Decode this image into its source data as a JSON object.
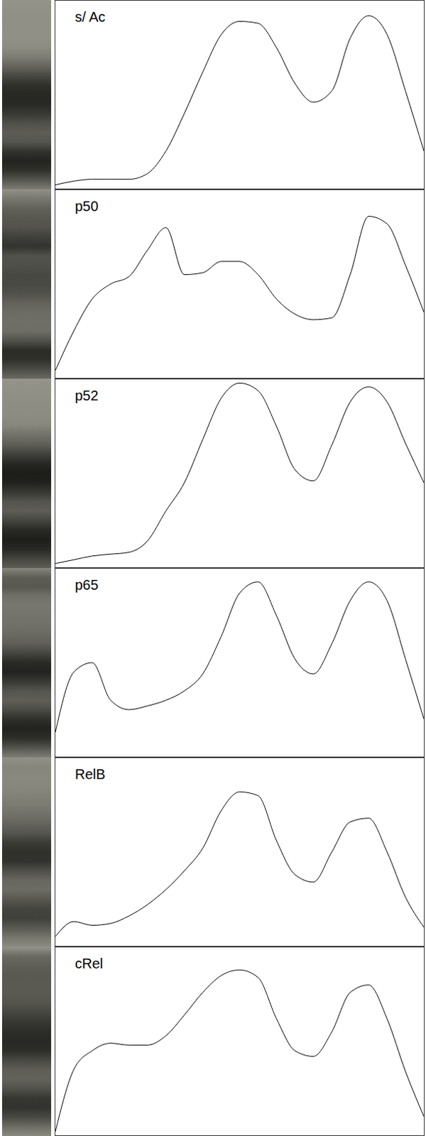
{
  "chart_data": [
    {
      "type": "line",
      "title": "s/ Ac",
      "x": [
        0,
        5,
        10,
        15,
        20,
        25,
        30,
        35,
        40,
        45,
        50,
        55,
        60,
        65,
        70,
        75,
        80,
        85,
        90,
        95,
        100
      ],
      "values": [
        2,
        4,
        5,
        5,
        5,
        8,
        20,
        40,
        62,
        82,
        89,
        88,
        75,
        56,
        46,
        52,
        80,
        92,
        82,
        52,
        20
      ],
      "xlim": [
        0,
        100
      ],
      "ylim": [
        0,
        100
      ],
      "tick_labels": false,
      "color": "#000000"
    },
    {
      "type": "line",
      "title": "p50",
      "x": [
        0,
        5,
        10,
        15,
        20,
        25,
        30,
        35,
        40,
        45,
        50,
        55,
        60,
        65,
        70,
        75,
        80,
        85,
        90,
        95,
        100
      ],
      "values": [
        4,
        25,
        42,
        50,
        54,
        68,
        80,
        55,
        56,
        62,
        62,
        55,
        42,
        34,
        31,
        32,
        55,
        86,
        82,
        60,
        35
      ],
      "xlim": [
        0,
        100
      ],
      "ylim": [
        0,
        100
      ],
      "tick_labels": false,
      "color": "#000000"
    },
    {
      "type": "line",
      "title": "p52",
      "x": [
        0,
        5,
        10,
        15,
        20,
        25,
        30,
        35,
        40,
        45,
        50,
        55,
        60,
        65,
        70,
        75,
        80,
        85,
        90,
        95,
        100
      ],
      "values": [
        2,
        4,
        6,
        7,
        8,
        14,
        30,
        45,
        68,
        90,
        98,
        94,
        75,
        52,
        46,
        65,
        88,
        96,
        88,
        66,
        45
      ],
      "xlim": [
        0,
        100
      ],
      "ylim": [
        0,
        100
      ],
      "tick_labels": false,
      "color": "#000000"
    },
    {
      "type": "line",
      "title": "p65",
      "x": [
        0,
        5,
        10,
        15,
        20,
        25,
        30,
        35,
        40,
        45,
        50,
        55,
        60,
        65,
        70,
        75,
        80,
        85,
        90,
        95,
        100
      ],
      "values": [
        13,
        45,
        50,
        30,
        25,
        27,
        30,
        35,
        44,
        64,
        87,
        93,
        75,
        52,
        44,
        60,
        83,
        93,
        83,
        52,
        20
      ],
      "xlim": [
        0,
        100
      ],
      "ylim": [
        0,
        100
      ],
      "tick_labels": false,
      "color": "#000000"
    },
    {
      "type": "line",
      "title": "RelB",
      "x": [
        0,
        5,
        10,
        15,
        20,
        25,
        30,
        35,
        40,
        45,
        50,
        55,
        60,
        65,
        70,
        75,
        80,
        85,
        90,
        95,
        100
      ],
      "values": [
        5,
        13,
        11,
        12,
        16,
        22,
        30,
        40,
        52,
        72,
        82,
        80,
        56,
        38,
        34,
        50,
        66,
        68,
        50,
        26,
        10
      ],
      "xlim": [
        0,
        100
      ],
      "ylim": [
        0,
        100
      ],
      "tick_labels": false,
      "color": "#000000"
    },
    {
      "type": "line",
      "title": "cRel",
      "x": [
        0,
        5,
        10,
        15,
        20,
        25,
        30,
        35,
        40,
        45,
        50,
        55,
        60,
        65,
        70,
        75,
        80,
        85,
        90,
        95,
        100
      ],
      "values": [
        2,
        35,
        45,
        49,
        48,
        48,
        53,
        64,
        76,
        85,
        88,
        84,
        62,
        45,
        42,
        55,
        76,
        80,
        62,
        34,
        10
      ],
      "xlim": [
        0,
        100
      ],
      "ylim": [
        0,
        100
      ],
      "tick_labels": false,
      "color": "#000000"
    }
  ]
}
